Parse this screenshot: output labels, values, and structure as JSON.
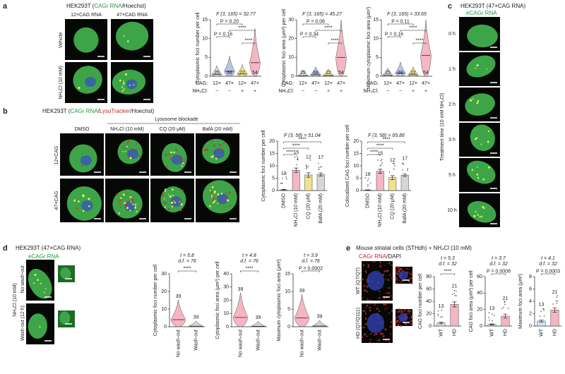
{
  "panels": {
    "a": {
      "label": "a",
      "title": [
        {
          "text": "HEK293T ("
        },
        {
          "text": "CAGr RNA",
          "color": "#1f9a3c"
        },
        {
          "text": "/Hoechst)"
        }
      ],
      "columns": [
        "12×CAG RNA",
        "47×CAG RNA"
      ],
      "rows": [
        "Vehicle",
        "NH₄Cl (10 mM)"
      ],
      "charts": [
        {
          "type": "violin",
          "stat": [
            "F (3, 165) = 32.77"
          ],
          "ylabel": "Cytoplasmic foci number per cell",
          "values": [
            0.5,
            1.3,
            0.6,
            3.6
          ],
          "n": [
            25,
            68,
            22,
            54
          ],
          "ylim": [
            0,
            15
          ],
          "yticks": [
            0,
            5,
            10,
            15
          ],
          "comparisons": [
            "P = 0.20",
            "P = 0.16",
            "****",
            "****"
          ],
          "colors": [
            "#dcdcdc",
            "#b8c4e8",
            "#f2e28a",
            "#f4b6c2"
          ],
          "factor_rows": [
            {
              "name": "CAG:",
              "values": [
                "12×",
                "47×",
                "12×",
                "47×"
              ]
            },
            {
              "name": "NH₄Cl:",
              "values": [
                "−",
                "−",
                "+",
                "+"
              ]
            }
          ]
        },
        {
          "type": "violin",
          "stat": [
            "F (3, 165) = 45.27"
          ],
          "ylabel": "Cytoplasmic foci area (μm²) per cell",
          "values": [
            0.3,
            0.8,
            0.4,
            10
          ],
          "n": [
            25,
            68,
            22,
            54
          ],
          "ylim": [
            0,
            30
          ],
          "yticks": [
            0,
            10,
            20,
            30
          ],
          "comparisons": [
            "P = 0.06",
            "P = 0.34",
            "****",
            "****"
          ],
          "colors": [
            "#dcdcdc",
            "#b8c4e8",
            "#f2e28a",
            "#f4b6c2"
          ],
          "factor_rows": [
            {
              "name": "CAG:",
              "values": [
                "12×",
                "47×",
                "12×",
                "47×"
              ]
            },
            {
              "name": "NH₄Cl:",
              "values": [
                "−",
                "−",
                "+",
                "+"
              ]
            }
          ]
        },
        {
          "type": "violin",
          "stat": [
            "F (3, 165) = 33.65"
          ],
          "ylabel": "Maximum cytoplasmic foci area (μm²)",
          "values": [
            0.3,
            0.8,
            0.4,
            5.5
          ],
          "n": [
            25,
            68,
            22,
            54
          ],
          "ylim": [
            0,
            15
          ],
          "yticks": [
            0,
            5,
            10,
            15
          ],
          "comparisons": [
            "P = 0.11",
            "P = 0.16",
            "****",
            "****"
          ],
          "colors": [
            "#dcdcdc",
            "#b8c4e8",
            "#f2e28a",
            "#f4b6c2"
          ],
          "factor_rows": [
            {
              "name": "CAG:",
              "values": [
                "12×",
                "47×",
                "12×",
                "47×"
              ]
            },
            {
              "name": "NH₄Cl:",
              "values": [
                "−",
                "−",
                "+",
                "+"
              ]
            }
          ]
        }
      ]
    },
    "b": {
      "label": "b",
      "title": [
        {
          "text": "HEK293T ("
        },
        {
          "text": "CAGr RNA",
          "color": "#1f9a3c"
        },
        {
          "text": "/"
        },
        {
          "text": "LysoTracker",
          "color": "#d0202a"
        },
        {
          "text": "/Hoechst)"
        }
      ],
      "group_label": "Lysosome blockade",
      "columns": [
        "DMSO",
        "NH₄Cl (10 mM)",
        "CQ (20 μM)",
        "BafA (20 mM)"
      ],
      "rows": [
        "12×CAG",
        "47×CAG"
      ],
      "charts": [
        {
          "type": "bar",
          "stat": [
            "F (3, 58) = 51.04"
          ],
          "ylabel": "Cytoplasmic foci number per cell",
          "categories": [
            "DMSO",
            "NH₄Cl (10 mM)",
            "CQ (20 μM)",
            "BafA (20 mM)"
          ],
          "values": [
            0.3,
            8.2,
            6.3,
            6.5
          ],
          "errors": [
            0.2,
            0.9,
            0.9,
            0.6
          ],
          "n": [
            18,
            15,
            12,
            17
          ],
          "ylim": [
            0,
            20
          ],
          "yticks": [
            0,
            5,
            10,
            15,
            20
          ],
          "comparisons": [
            "****",
            "****",
            "****"
          ],
          "colors": [
            "#e0e0e0",
            "#f4b6c2",
            "#f2e28a",
            "#d6d6d6"
          ]
        },
        {
          "type": "bar",
          "stat": [
            "F (3, 58) = 65.86"
          ],
          "ylabel": "Colocalized CAG foci number per cell",
          "categories": [
            "DMSO",
            "NH₄Cl (10 mM)",
            "CQ (20 μM)",
            "BafA (20 mM)"
          ],
          "values": [
            0.2,
            7.8,
            5.2,
            6.2
          ],
          "errors": [
            0.1,
            0.8,
            0.8,
            0.5
          ],
          "n": [
            18,
            15,
            12,
            17
          ],
          "ylim": [
            0,
            20
          ],
          "yticks": [
            0,
            5,
            10,
            15,
            20
          ],
          "comparisons": [
            "****",
            "****",
            "****"
          ],
          "colors": [
            "#e0e0e0",
            "#f4b6c2",
            "#f2e28a",
            "#d6d6d6"
          ]
        }
      ]
    },
    "c": {
      "label": "c",
      "title": [
        {
          "text": "HEK293T (47×CAG RNA)"
        }
      ],
      "subtitle": [
        {
          "text": "eCAGr RNA",
          "color": "#1f9a3c"
        }
      ],
      "ylabel": "Treatment time (10 mM NH₄Cl)",
      "rows": [
        "0 h",
        "1 h",
        "2 h",
        "3 h",
        "5 h",
        "10 h"
      ]
    },
    "d": {
      "label": "d",
      "title": [
        {
          "text": "HEK293T (47×CAG RNA)"
        }
      ],
      "subtitle": [
        {
          "text": "eCAGr RNA",
          "color": "#1f9a3c"
        }
      ],
      "side_label": "NH₄Cl (10 mM)",
      "rows": [
        "No wash-out",
        "Wash-out (12 h)"
      ],
      "charts": [
        {
          "type": "violin",
          "stat": [
            "t = 5.8",
            "d.f. = 76"
          ],
          "ylabel": "Cytoplasmic foci number per cell",
          "categories": [
            "No wash-out",
            "Wash-out"
          ],
          "values": [
            4,
            0.3
          ],
          "n": [
            39,
            39
          ],
          "ylim": [
            0,
            30
          ],
          "yticks": [
            0,
            10,
            20,
            30
          ],
          "comparisons": [
            "****"
          ],
          "colors": [
            "#f4b6c2",
            "#c8dcc8"
          ]
        },
        {
          "type": "violin",
          "stat": [
            "t = 4.8",
            "d.f. = 76"
          ],
          "ylabel": "Cytoplasmic foci area (μm²) per cell",
          "categories": [
            "No wash-out",
            "Wash-out"
          ],
          "values": [
            7,
            0.3
          ],
          "n": [
            39,
            39
          ],
          "ylim": [
            0,
            40
          ],
          "yticks": [
            0,
            10,
            20,
            30,
            40
          ],
          "comparisons": [
            "****"
          ],
          "colors": [
            "#f4b6c2",
            "#c8dcc8"
          ]
        },
        {
          "type": "violin",
          "stat": [
            "t = 3.9",
            "d.f. = 76"
          ],
          "ylabel": "Maximum cytoplasmic foci area (μm²)",
          "categories": [
            "No wash-out",
            "Wash-out"
          ],
          "values": [
            2.5,
            0.2
          ],
          "n": [
            39,
            39
          ],
          "ylim": [
            0,
            15
          ],
          "yticks": [
            0,
            5,
            10,
            15
          ],
          "comparisons": [
            "P = 0.0002"
          ],
          "colors": [
            "#f4b6c2",
            "#c8dcc8"
          ]
        }
      ]
    },
    "e": {
      "label": "e",
      "title": [
        {
          "text": "Mouse striatal cells (STHdh) + NH₄Cl (10 mM)"
        }
      ],
      "subtitle": [
        {
          "text": "CAGr RNA",
          "color": "#d0202a"
        },
        {
          "text": "/DAPI"
        }
      ],
      "rows": [
        "WT (Q7/Q7)",
        "HD (Q7/Q111)"
      ],
      "charts": [
        {
          "type": "bar",
          "stat": [
            "t = 5.3",
            "d.f. = 32"
          ],
          "ylabel": "CAG foci number per cell",
          "categories": [
            "WT",
            "HD"
          ],
          "values": [
            5,
            35
          ],
          "errors": [
            1.5,
            4
          ],
          "n": [
            13,
            21
          ],
          "ylim": [
            0,
            80
          ],
          "yticks": [
            0,
            20,
            40,
            60,
            80
          ],
          "comparisons": [
            "****"
          ],
          "colors": [
            "#cfe0f0",
            "#f4b6c2"
          ]
        },
        {
          "type": "bar",
          "stat": [
            "t = 3.7",
            "d.f. = 32"
          ],
          "ylabel": "CAG foci area (μm²) per cell",
          "categories": [
            "WT",
            "HD"
          ],
          "values": [
            2,
            12
          ],
          "errors": [
            0.6,
            2.5
          ],
          "n": [
            13,
            21
          ],
          "ylim": [
            0,
            60
          ],
          "yticks": [
            0,
            20,
            40,
            60
          ],
          "comparisons": [
            "P = 0.0008"
          ],
          "colors": [
            "#cfe0f0",
            "#f4b6c2"
          ]
        },
        {
          "type": "bar",
          "stat": [
            "t = 4.1",
            "d.f. = 32"
          ],
          "ylabel": "Maximum foci area (μm²)",
          "categories": [
            "WT",
            "HD"
          ],
          "values": [
            0.8,
            2.6
          ],
          "errors": [
            0.15,
            0.35
          ],
          "n": [
            13,
            21
          ],
          "ylim": [
            0,
            8
          ],
          "yticks": [
            0,
            2,
            4,
            6,
            8
          ],
          "comparisons": [
            "P = 0.0003"
          ],
          "colors": [
            "#cfe0f0",
            "#f4b6c2"
          ]
        }
      ]
    }
  }
}
